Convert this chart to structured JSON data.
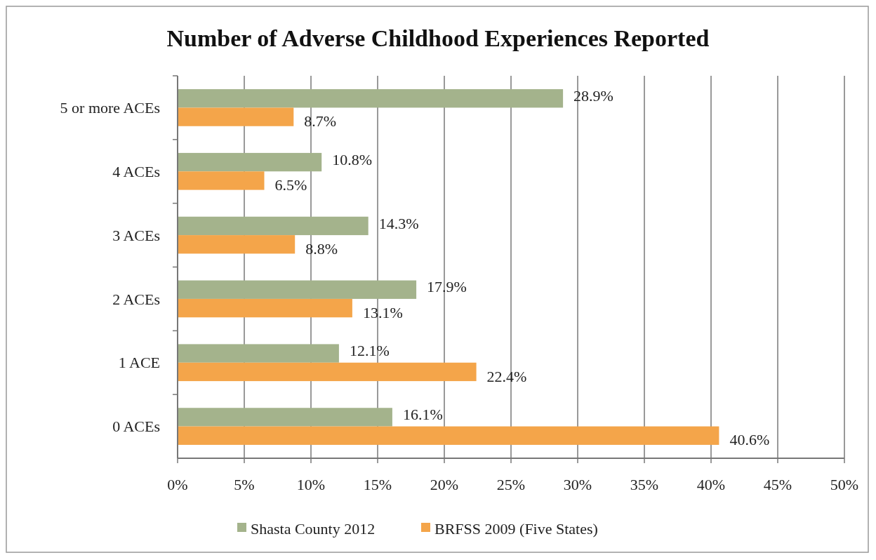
{
  "chart_data": {
    "type": "bar",
    "orientation": "horizontal",
    "title": "Number of Adverse Childhood Experiences Reported",
    "categories": [
      "5 or more ACEs",
      "4 ACEs",
      "3 ACEs",
      "2 ACEs",
      "1 ACE",
      "0 ACEs"
    ],
    "series": [
      {
        "name": "Shasta County 2012",
        "color": "#a4b38c",
        "values": [
          28.9,
          10.8,
          14.3,
          17.9,
          12.1,
          16.1
        ],
        "value_labels": [
          "28.9%",
          "10.8%",
          "14.3%",
          "17.9%",
          "12.1%",
          "16.1%"
        ]
      },
      {
        "name": "BRFSS 2009 (Five States)",
        "color": "#f4a54a",
        "values": [
          8.7,
          6.5,
          8.8,
          13.1,
          22.4,
          40.6
        ],
        "value_labels": [
          "8.7%",
          "6.5%",
          "8.8%",
          "13.1%",
          "22.4%",
          "40.6%"
        ]
      }
    ],
    "xlim": [
      0,
      50
    ],
    "xticks": [
      {
        "value": 0,
        "label": "0%"
      },
      {
        "value": 5,
        "label": "5%"
      },
      {
        "value": 10,
        "label": "10%"
      },
      {
        "value": 15,
        "label": "15%"
      },
      {
        "value": 20,
        "label": "20%"
      },
      {
        "value": 25,
        "label": "25%"
      },
      {
        "value": 30,
        "label": "30%"
      },
      {
        "value": 35,
        "label": "35%"
      },
      {
        "value": 40,
        "label": "40%"
      },
      {
        "value": 45,
        "label": "45%"
      },
      {
        "value": 50,
        "label": "50%"
      }
    ],
    "grid": "x",
    "legend": "bottom"
  }
}
